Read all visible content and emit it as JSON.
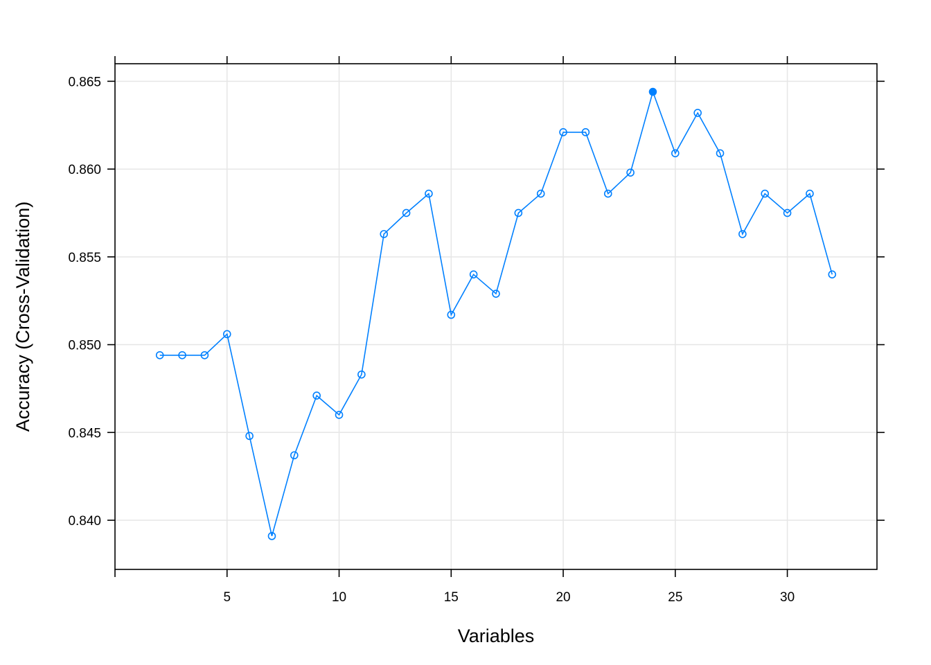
{
  "chart_data": {
    "type": "line",
    "xlabel": "Variables",
    "ylabel": "Accuracy (Cross-Validation)",
    "xlim": [
      0,
      34
    ],
    "ylim": [
      0.8372,
      0.866
    ],
    "x_ticks": [
      0,
      5,
      10,
      15,
      20,
      25,
      30
    ],
    "x_tick_labels": [
      "",
      "5",
      "10",
      "15",
      "20",
      "25",
      "30"
    ],
    "y_ticks": [
      0.84,
      0.845,
      0.85,
      0.855,
      0.86,
      0.865
    ],
    "y_tick_labels": [
      "0.840",
      "0.845",
      "0.850",
      "0.855",
      "0.860",
      "0.865"
    ],
    "grid": true,
    "series": [
      {
        "color": "#0080ff",
        "x": [
          2,
          3,
          4,
          5,
          6,
          7,
          8,
          9,
          10,
          11,
          12,
          13,
          14,
          15,
          16,
          17,
          18,
          19,
          20,
          21,
          22,
          23,
          24,
          25,
          26,
          27,
          28,
          29,
          30,
          31,
          32
        ],
        "values": [
          0.8494,
          0.8494,
          0.8494,
          0.8506,
          0.8448,
          0.8391,
          0.8437,
          0.8471,
          0.846,
          0.8483,
          0.8563,
          0.8575,
          0.8586,
          0.8517,
          0.854,
          0.8529,
          0.8575,
          0.8586,
          0.8621,
          0.8621,
          0.8586,
          0.8598,
          0.8644,
          0.8609,
          0.8632,
          0.8609,
          0.8563,
          0.8586,
          0.8575,
          0.8586,
          0.854
        ],
        "highlight_x": 24
      }
    ]
  }
}
